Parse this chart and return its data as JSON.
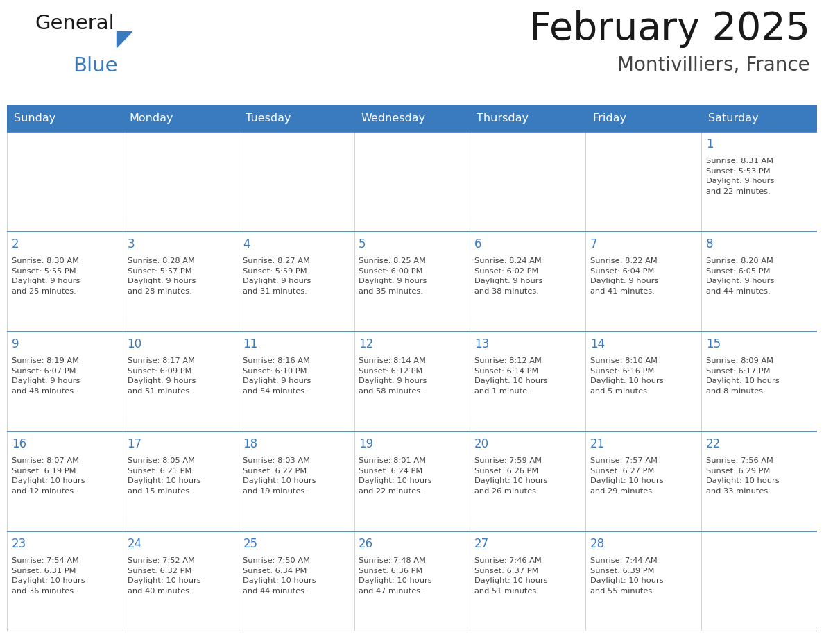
{
  "title": "February 2025",
  "subtitle": "Montivilliers, France",
  "header_color": "#3a7abf",
  "header_text_color": "#ffffff",
  "border_color": "#3a7abf",
  "day_number_color": "#3a7abf",
  "text_color": "#444444",
  "days_of_week": [
    "Sunday",
    "Monday",
    "Tuesday",
    "Wednesday",
    "Thursday",
    "Friday",
    "Saturday"
  ],
  "logo_triangle_color": "#3a7abf",
  "weeks": [
    [
      {
        "day": null,
        "info": null
      },
      {
        "day": null,
        "info": null
      },
      {
        "day": null,
        "info": null
      },
      {
        "day": null,
        "info": null
      },
      {
        "day": null,
        "info": null
      },
      {
        "day": null,
        "info": null
      },
      {
        "day": 1,
        "info": "Sunrise: 8:31 AM\nSunset: 5:53 PM\nDaylight: 9 hours\nand 22 minutes."
      }
    ],
    [
      {
        "day": 2,
        "info": "Sunrise: 8:30 AM\nSunset: 5:55 PM\nDaylight: 9 hours\nand 25 minutes."
      },
      {
        "day": 3,
        "info": "Sunrise: 8:28 AM\nSunset: 5:57 PM\nDaylight: 9 hours\nand 28 minutes."
      },
      {
        "day": 4,
        "info": "Sunrise: 8:27 AM\nSunset: 5:59 PM\nDaylight: 9 hours\nand 31 minutes."
      },
      {
        "day": 5,
        "info": "Sunrise: 8:25 AM\nSunset: 6:00 PM\nDaylight: 9 hours\nand 35 minutes."
      },
      {
        "day": 6,
        "info": "Sunrise: 8:24 AM\nSunset: 6:02 PM\nDaylight: 9 hours\nand 38 minutes."
      },
      {
        "day": 7,
        "info": "Sunrise: 8:22 AM\nSunset: 6:04 PM\nDaylight: 9 hours\nand 41 minutes."
      },
      {
        "day": 8,
        "info": "Sunrise: 8:20 AM\nSunset: 6:05 PM\nDaylight: 9 hours\nand 44 minutes."
      }
    ],
    [
      {
        "day": 9,
        "info": "Sunrise: 8:19 AM\nSunset: 6:07 PM\nDaylight: 9 hours\nand 48 minutes."
      },
      {
        "day": 10,
        "info": "Sunrise: 8:17 AM\nSunset: 6:09 PM\nDaylight: 9 hours\nand 51 minutes."
      },
      {
        "day": 11,
        "info": "Sunrise: 8:16 AM\nSunset: 6:10 PM\nDaylight: 9 hours\nand 54 minutes."
      },
      {
        "day": 12,
        "info": "Sunrise: 8:14 AM\nSunset: 6:12 PM\nDaylight: 9 hours\nand 58 minutes."
      },
      {
        "day": 13,
        "info": "Sunrise: 8:12 AM\nSunset: 6:14 PM\nDaylight: 10 hours\nand 1 minute."
      },
      {
        "day": 14,
        "info": "Sunrise: 8:10 AM\nSunset: 6:16 PM\nDaylight: 10 hours\nand 5 minutes."
      },
      {
        "day": 15,
        "info": "Sunrise: 8:09 AM\nSunset: 6:17 PM\nDaylight: 10 hours\nand 8 minutes."
      }
    ],
    [
      {
        "day": 16,
        "info": "Sunrise: 8:07 AM\nSunset: 6:19 PM\nDaylight: 10 hours\nand 12 minutes."
      },
      {
        "day": 17,
        "info": "Sunrise: 8:05 AM\nSunset: 6:21 PM\nDaylight: 10 hours\nand 15 minutes."
      },
      {
        "day": 18,
        "info": "Sunrise: 8:03 AM\nSunset: 6:22 PM\nDaylight: 10 hours\nand 19 minutes."
      },
      {
        "day": 19,
        "info": "Sunrise: 8:01 AM\nSunset: 6:24 PM\nDaylight: 10 hours\nand 22 minutes."
      },
      {
        "day": 20,
        "info": "Sunrise: 7:59 AM\nSunset: 6:26 PM\nDaylight: 10 hours\nand 26 minutes."
      },
      {
        "day": 21,
        "info": "Sunrise: 7:57 AM\nSunset: 6:27 PM\nDaylight: 10 hours\nand 29 minutes."
      },
      {
        "day": 22,
        "info": "Sunrise: 7:56 AM\nSunset: 6:29 PM\nDaylight: 10 hours\nand 33 minutes."
      }
    ],
    [
      {
        "day": 23,
        "info": "Sunrise: 7:54 AM\nSunset: 6:31 PM\nDaylight: 10 hours\nand 36 minutes."
      },
      {
        "day": 24,
        "info": "Sunrise: 7:52 AM\nSunset: 6:32 PM\nDaylight: 10 hours\nand 40 minutes."
      },
      {
        "day": 25,
        "info": "Sunrise: 7:50 AM\nSunset: 6:34 PM\nDaylight: 10 hours\nand 44 minutes."
      },
      {
        "day": 26,
        "info": "Sunrise: 7:48 AM\nSunset: 6:36 PM\nDaylight: 10 hours\nand 47 minutes."
      },
      {
        "day": 27,
        "info": "Sunrise: 7:46 AM\nSunset: 6:37 PM\nDaylight: 10 hours\nand 51 minutes."
      },
      {
        "day": 28,
        "info": "Sunrise: 7:44 AM\nSunset: 6:39 PM\nDaylight: 10 hours\nand 55 minutes."
      },
      {
        "day": null,
        "info": null
      }
    ]
  ]
}
